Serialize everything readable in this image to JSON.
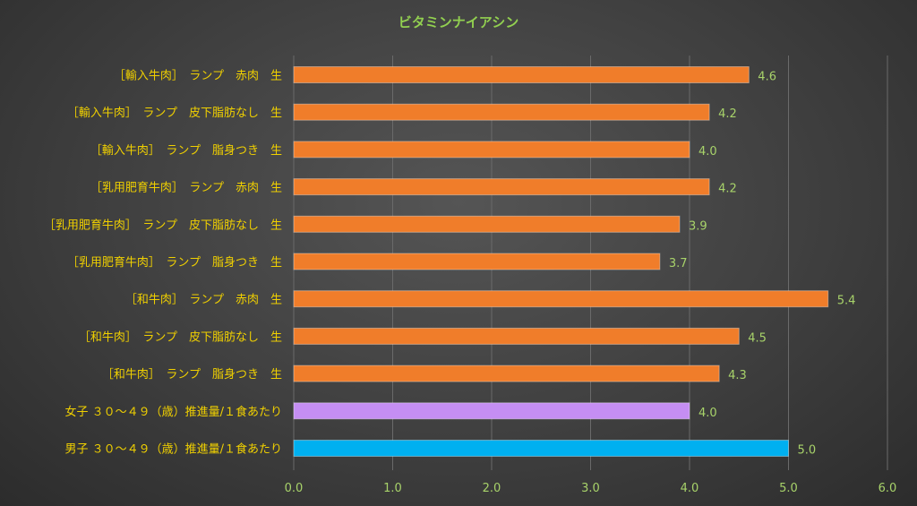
{
  "chart_data": {
    "type": "bar",
    "orientation": "horizontal",
    "title": "ビタミンナイアシン",
    "xlabel": "",
    "ylabel": "",
    "xlim": [
      0,
      6
    ],
    "ticks": [
      "0.0",
      "1.0",
      "2.0",
      "3.0",
      "4.0",
      "5.0",
      "6.0"
    ],
    "grid": true,
    "categories": [
      "［輸入牛肉］　ランプ　赤肉　生",
      "［輸入牛肉］　ランプ　皮下脂肪なし　生",
      "［輸入牛肉］　ランプ　脂身つき　生",
      "［乳用肥育牛肉］　ランプ　赤肉　生",
      "［乳用肥育牛肉］　ランプ　皮下脂肪なし　生",
      "［乳用肥育牛肉］　ランプ　脂身つき　生",
      "［和牛肉］　ランプ　赤肉　生",
      "［和牛肉］　ランプ　皮下脂肪なし　生",
      "［和牛肉］　ランプ　脂身つき　生",
      "女子 ３０～４９（歳）推進量/１食あたり",
      "男子 ３０～４９（歳）推進量/１食あたり"
    ],
    "values": [
      4.6,
      4.2,
      4.0,
      4.2,
      3.9,
      3.7,
      5.4,
      4.5,
      4.3,
      4.0,
      5.0
    ],
    "value_labels": [
      "4.6",
      "4.2",
      "4.0",
      "4.2",
      "3.9",
      "3.7",
      "5.4",
      "4.5",
      "4.3",
      "4.0",
      "5.0"
    ],
    "bar_colors": [
      "#f07d2a",
      "#f07d2a",
      "#f07d2a",
      "#f07d2a",
      "#f07d2a",
      "#f07d2a",
      "#f07d2a",
      "#f07d2a",
      "#f07d2a",
      "#c58ef3",
      "#00b0f0"
    ],
    "colors": {
      "title": "#92d050",
      "category_label": "#f0d000",
      "value_label": "#a8d36a",
      "tick_label": "#a8d36a",
      "gridline": "#6a6a6a"
    }
  }
}
